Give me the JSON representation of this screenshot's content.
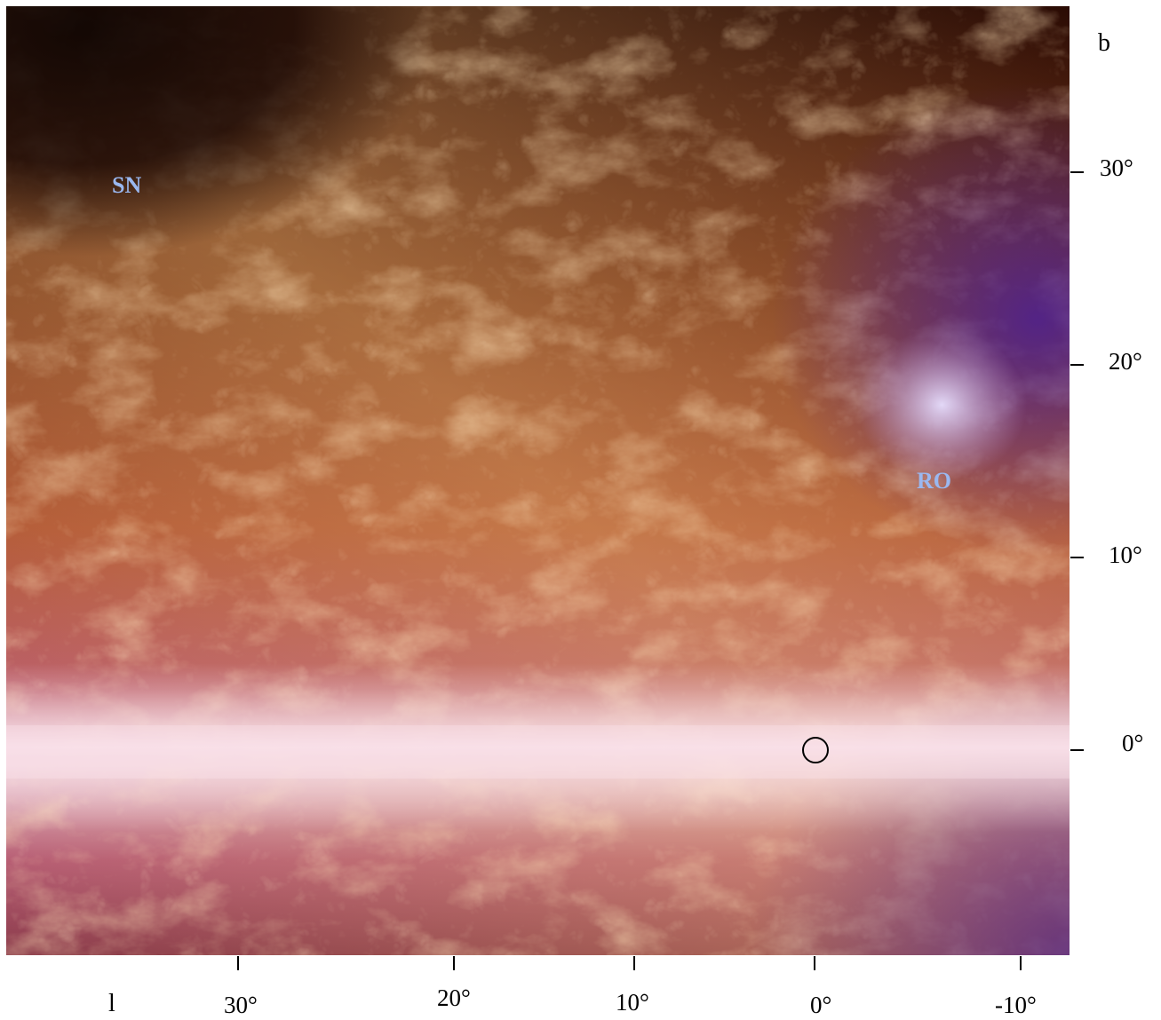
{
  "image": {
    "description_icon": "infrared-dust-map-image",
    "colors": {
      "dark_sky": "#150603",
      "dust_orange": "#b5542a",
      "dust_gold": "#e8b870",
      "plane_pink": "#f2d0dc",
      "lower_magenta": "#a24a6a",
      "corner_violet": "#6a2f86"
    }
  },
  "labels": {
    "sn": {
      "text": "SN",
      "color": "#9ab8f0"
    },
    "ro": {
      "text": "RO",
      "color": "#9ab8f0"
    }
  },
  "axes": {
    "y_title": "b",
    "x_title": "l",
    "y_ticks": [
      "30°",
      "20°",
      "10°",
      "0°"
    ],
    "x_ticks": [
      "30°",
      "20°",
      "10°",
      "0°",
      "-10°"
    ]
  },
  "marker": {
    "name": "galactic-center-circle-icon"
  }
}
